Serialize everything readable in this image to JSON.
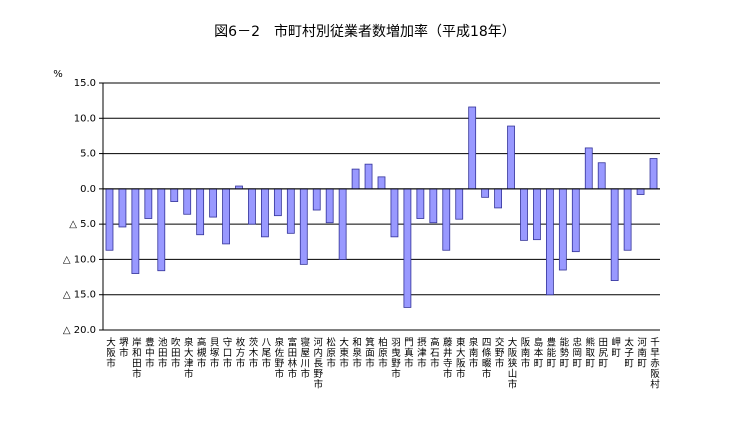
{
  "chart_data": {
    "type": "bar",
    "title": "図6－2　市町村別従業者数増加率（平成18年）",
    "y_label": "%",
    "categories": [
      "大阪市",
      "堺市",
      "岸和田市",
      "豊中市",
      "池田市",
      "吹田市",
      "泉大津市",
      "高槻市",
      "貝塚市",
      "守口市",
      "枚方市",
      "茨木市",
      "八尾市",
      "泉佐野市",
      "富田林市",
      "寝屋川市",
      "河内長野市",
      "松原市",
      "大東市",
      "和泉市",
      "箕面市",
      "柏原市",
      "羽曳野市",
      "門真市",
      "摂津市",
      "高石市",
      "藤井寺市",
      "東大阪市",
      "泉南市",
      "四條畷市",
      "交野市",
      "大阪狭山市",
      "阪南市",
      "島本町",
      "豊能町",
      "能勢町",
      "忠岡町",
      "熊取町",
      "田尻町",
      "岬町",
      "太子町",
      "河南町",
      "千早赤阪村"
    ],
    "values": [
      -8.7,
      -5.4,
      -12.0,
      -4.2,
      -11.6,
      -1.8,
      -3.6,
      -6.5,
      -4.0,
      -7.8,
      0.4,
      -5.0,
      -6.8,
      -3.8,
      -6.3,
      -10.7,
      -3.0,
      -4.8,
      -10.0,
      2.8,
      3.5,
      1.7,
      -6.8,
      -16.8,
      -4.2,
      -4.8,
      -8.7,
      -4.3,
      11.6,
      -1.2,
      -2.7,
      8.9,
      -7.3,
      -7.2,
      -15.0,
      -11.5,
      -8.9,
      5.8,
      3.7,
      -13.0,
      -8.7,
      -0.8,
      4.3
    ],
    "color": "#9999ff",
    "ylim": [
      -20,
      15
    ],
    "yticks": [
      {
        "value": -20,
        "label": "△ 20.0"
      },
      {
        "value": -15,
        "label": "△ 15.0"
      },
      {
        "value": -10,
        "label": "△ 10.0"
      },
      {
        "value": -5,
        "label": "△ 5.0"
      },
      {
        "value": 0,
        "label": "0.0"
      },
      {
        "value": 5,
        "label": "5.0"
      },
      {
        "value": 10,
        "label": "10.0"
      },
      {
        "value": 15,
        "label": "15.0"
      }
    ],
    "grid": true
  }
}
